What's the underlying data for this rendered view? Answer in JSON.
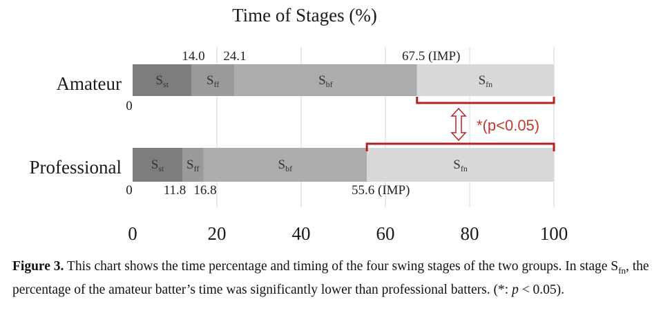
{
  "chart_data": {
    "type": "bar",
    "subtype": "stacked-horizontal",
    "title": "Time of Stages (%)",
    "xlim": [
      0,
      100
    ],
    "xticks": [
      0,
      20,
      40,
      60,
      80,
      100
    ],
    "groups": [
      {
        "name": "Amateur",
        "zero_label": "0",
        "segments": [
          {
            "stage": "st",
            "start": 0,
            "end": 14.0,
            "color": "#7d7d7d"
          },
          {
            "stage": "ff",
            "start": 14.0,
            "end": 24.1,
            "color": "#9a9a9a"
          },
          {
            "stage": "bf",
            "start": 24.1,
            "end": 67.5,
            "color": "#acacac"
          },
          {
            "stage": "fn",
            "start": 67.5,
            "end": 100,
            "color": "#d8d8d8"
          }
        ],
        "boundary_labels": [
          "14.0",
          "24.1",
          "67.5 (IMP)"
        ]
      },
      {
        "name": "Professional",
        "zero_label": "0",
        "segments": [
          {
            "stage": "st",
            "start": 0,
            "end": 11.8,
            "color": "#7d7d7d"
          },
          {
            "stage": "ff",
            "start": 11.8,
            "end": 16.8,
            "color": "#9a9a9a"
          },
          {
            "stage": "bf",
            "start": 16.8,
            "end": 55.6,
            "color": "#acacac"
          },
          {
            "stage": "fn",
            "start": 55.6,
            "end": 100,
            "color": "#d8d8d8"
          }
        ],
        "boundary_labels": [
          "11.8",
          "16.8",
          "55.6 (IMP)"
        ]
      }
    ],
    "stage_label_base": "S",
    "annotation": {
      "text": "*(p<0.05)",
      "color": "#c0392b",
      "bracket_color": "#b22222"
    }
  },
  "caption": {
    "figure_label": "Figure 3.",
    "part1": " This chart shows the time percentage and timing of the four swing stages of the two groups. In stage S",
    "sub": "fn",
    "part2": ", the percentage of the amateur batter’s time was significantly lower than professional batters. (*: ",
    "p": "p",
    "part3": " < 0.05)."
  }
}
